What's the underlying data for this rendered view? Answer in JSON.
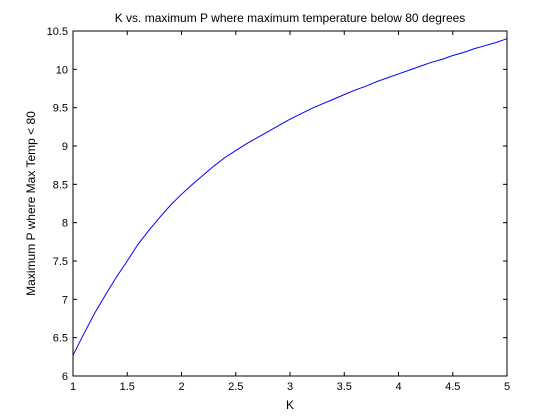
{
  "chart_data": {
    "type": "line",
    "title": "K vs. maximum P where maximum temperature below 80 degrees",
    "xlabel": "K",
    "ylabel": "Maximum P where Max Temp < 80",
    "xlim": [
      1,
      5
    ],
    "ylim": [
      6,
      10.5
    ],
    "x_ticks": [
      "1",
      "1.5",
      "2",
      "2.5",
      "3",
      "3.5",
      "4",
      "4.5",
      "5"
    ],
    "y_ticks": [
      "6",
      "6.5",
      "7",
      "7.5",
      "8",
      "8.5",
      "9",
      "9.5",
      "10",
      "10.5"
    ],
    "grid": false,
    "series": [
      {
        "color": "#0000ff",
        "x": [
          1.0,
          1.1,
          1.2,
          1.3,
          1.4,
          1.5,
          1.6,
          1.7,
          1.8,
          1.9,
          2.0,
          2.1,
          2.2,
          2.3,
          2.4,
          2.5,
          2.6,
          2.7,
          2.8,
          2.9,
          3.0,
          3.1,
          3.2,
          3.3,
          3.4,
          3.5,
          3.6,
          3.7,
          3.8,
          3.9,
          4.0,
          4.1,
          4.2,
          4.3,
          4.4,
          4.5,
          4.6,
          4.7,
          4.8,
          4.9,
          5.0
        ],
        "y": [
          6.27,
          6.55,
          6.82,
          7.06,
          7.29,
          7.5,
          7.72,
          7.9,
          8.07,
          8.23,
          8.37,
          8.5,
          8.62,
          8.74,
          8.85,
          8.94,
          9.03,
          9.11,
          9.19,
          9.27,
          9.35,
          9.42,
          9.49,
          9.55,
          9.61,
          9.67,
          9.73,
          9.78,
          9.84,
          9.89,
          9.94,
          9.99,
          10.04,
          10.09,
          10.13,
          10.18,
          10.22,
          10.27,
          10.31,
          10.35,
          10.4
        ]
      }
    ]
  }
}
